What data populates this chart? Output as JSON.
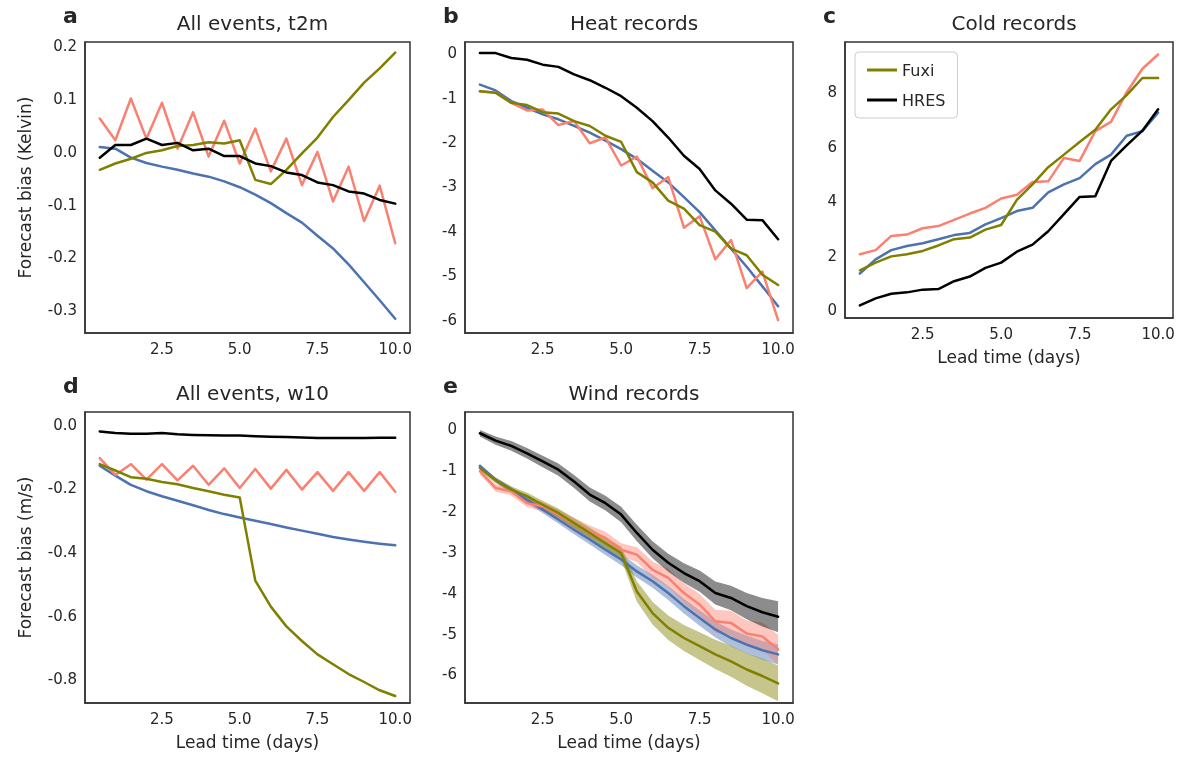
{
  "chart_data": [
    {
      "type": "line",
      "title": "All events, t2m",
      "annotations": [
        "a"
      ],
      "ylabel": "Forecast bias (Kelvin)",
      "x": [
        0.5,
        1,
        1.5,
        2,
        2.5,
        3,
        3.5,
        4,
        4.5,
        5,
        5.5,
        6,
        6.5,
        7,
        7.5,
        8,
        8.5,
        9,
        9.5,
        10
      ],
      "xlim": [
        0.025,
        10.475
      ],
      "xticks": [
        {
          "value": 2.5,
          "label": "2.5"
        },
        {
          "value": 5,
          "label": "5.0"
        },
        {
          "value": 7.5,
          "label": "7.5"
        },
        {
          "value": 10,
          "label": "10.0"
        }
      ],
      "ylim": [
        -0.343,
        0.208
      ],
      "yticks": [
        0.2,
        0.1,
        {
          "value": 0,
          "label": "0.0"
        },
        -0.1,
        -0.2,
        -0.3
      ],
      "series": [
        {
          "color": "#4c72b0",
          "values": [
            0.009,
            0.006,
            -0.011,
            -0.021,
            -0.028,
            -0.034,
            -0.041,
            -0.047,
            -0.056,
            -0.067,
            -0.081,
            -0.097,
            -0.116,
            -0.134,
            -0.159,
            -0.183,
            -0.213,
            -0.247,
            -0.281,
            -0.316
          ]
        },
        {
          "color": "#fa8072",
          "values": [
            0.063,
            0.022,
            0.101,
            0.025,
            0.093,
            0.006,
            0.075,
            -0.009,
            0.059,
            -0.022,
            0.044,
            -0.037,
            0.025,
            -0.063,
            0.0,
            -0.094,
            -0.028,
            -0.131,
            -0.064,
            -0.173
          ]
        },
        {
          "color": "#808000",
          "values": [
            -0.034,
            -0.022,
            -0.013,
            -0.002,
            0.003,
            0.011,
            0.013,
            0.018,
            0.016,
            0.022,
            -0.053,
            -0.061,
            -0.034,
            -0.003,
            0.027,
            0.066,
            0.098,
            0.131,
            0.158,
            0.188
          ]
        },
        {
          "color": "#000000",
          "values": [
            -0.011,
            0.013,
            0.013,
            0.025,
            0.013,
            0.017,
            0.003,
            0.006,
            -0.008,
            -0.008,
            -0.022,
            -0.027,
            -0.039,
            -0.044,
            -0.058,
            -0.063,
            -0.075,
            -0.079,
            -0.091,
            -0.098
          ]
        }
      ]
    },
    {
      "type": "line",
      "title": "Heat records",
      "annotations": [
        "b"
      ],
      "x": [
        0.5,
        1,
        1.5,
        2,
        2.5,
        3,
        3.5,
        4,
        4.5,
        5,
        5.5,
        6,
        6.5,
        7,
        7.5,
        8,
        8.5,
        9,
        9.5,
        10
      ],
      "xlim": [
        0.025,
        10.475
      ],
      "xticks": [
        {
          "value": 2.5,
          "label": "2.5"
        },
        {
          "value": 5,
          "label": "5.0"
        },
        {
          "value": 7.5,
          "label": "7.5"
        },
        {
          "value": 10,
          "label": "10.0"
        }
      ],
      "ylim": [
        -6.3,
        0.25
      ],
      "yticks": [
        0,
        -1,
        -2,
        -3,
        -4,
        -5,
        -6
      ],
      "series": [
        {
          "color": "#4c72b0",
          "values": [
            -0.71,
            -0.84,
            -1.08,
            -1.23,
            -1.38,
            -1.49,
            -1.64,
            -1.79,
            -1.97,
            -2.16,
            -2.38,
            -2.65,
            -2.91,
            -3.24,
            -3.58,
            -3.99,
            -4.4,
            -4.81,
            -5.25,
            -5.7
          ]
        },
        {
          "color": "#fa8072",
          "values": [
            -0.86,
            -0.89,
            -1.12,
            -1.29,
            -1.27,
            -1.62,
            -1.53,
            -2.03,
            -1.9,
            -2.53,
            -2.33,
            -3.04,
            -2.79,
            -3.93,
            -3.67,
            -4.64,
            -4.21,
            -5.29,
            -4.92,
            -6.01
          ]
        },
        {
          "color": "#808000",
          "values": [
            -0.86,
            -0.89,
            -1.12,
            -1.17,
            -1.33,
            -1.36,
            -1.53,
            -1.64,
            -1.86,
            -2.0,
            -2.68,
            -2.91,
            -3.32,
            -3.5,
            -3.87,
            -4.02,
            -4.4,
            -4.55,
            -4.99,
            -5.22
          ]
        },
        {
          "color": "#000000",
          "values": [
            0,
            0,
            -0.11,
            -0.15,
            -0.26,
            -0.31,
            -0.48,
            -0.61,
            -0.78,
            -0.97,
            -1.23,
            -1.53,
            -1.9,
            -2.31,
            -2.61,
            -3.09,
            -3.39,
            -3.75,
            -3.76,
            -4.19
          ]
        }
      ]
    },
    {
      "type": "line",
      "title": "Cold records",
      "annotations": [
        "c"
      ],
      "xlabel": "Lead time (days)",
      "legend": "top left",
      "x": [
        0.5,
        1,
        1.5,
        2,
        2.5,
        3,
        3.5,
        4,
        4.5,
        5,
        5.5,
        6,
        6.5,
        7,
        7.5,
        8,
        8.5,
        9,
        9.5,
        10
      ],
      "xlim": [
        0.025,
        10.475
      ],
      "xticks": [
        {
          "value": 2.5,
          "label": "2.5"
        },
        {
          "value": 5,
          "label": "5.0"
        },
        {
          "value": 7.5,
          "label": "7.5"
        },
        {
          "value": 10,
          "label": "10.0"
        }
      ],
      "ylim": [
        -0.28,
        9.84
      ],
      "yticks": [
        0,
        2,
        4,
        6,
        8
      ],
      "series": [
        {
          "color": "#4c72b0",
          "values": [
            1.35,
            1.87,
            2.21,
            2.36,
            2.46,
            2.61,
            2.76,
            2.84,
            3.15,
            3.38,
            3.64,
            3.76,
            4.33,
            4.62,
            4.85,
            5.36,
            5.71,
            6.4,
            6.57,
            7.25
          ]
        },
        {
          "color": "#fa8072",
          "values": [
            2.06,
            2.21,
            2.73,
            2.78,
            3.01,
            3.09,
            3.32,
            3.55,
            3.76,
            4.1,
            4.24,
            4.71,
            4.73,
            5.59,
            5.48,
            6.57,
            6.91,
            8.0,
            8.86,
            9.38
          ]
        },
        {
          "name": "Fuxi",
          "color": "#808000",
          "values": [
            1.47,
            1.75,
            1.98,
            2.06,
            2.18,
            2.38,
            2.61,
            2.67,
            2.96,
            3.13,
            4.05,
            4.62,
            5.25,
            5.71,
            6.17,
            6.62,
            7.37,
            7.89,
            8.52,
            8.52
          ]
        },
        {
          "name": "HRES",
          "color": "#000000",
          "values": [
            0.18,
            0.44,
            0.61,
            0.66,
            0.76,
            0.78,
            1.07,
            1.24,
            1.56,
            1.75,
            2.15,
            2.41,
            2.9,
            3.53,
            4.16,
            4.18,
            5.48,
            6.05,
            6.59,
            7.37
          ]
        }
      ]
    },
    {
      "type": "line",
      "title": "All events, w10",
      "annotations": [
        "d"
      ],
      "xlabel": "Lead time (days)",
      "ylabel": "Forecast bias (m/s)",
      "x": [
        0.5,
        1,
        1.5,
        2,
        2.5,
        3,
        3.5,
        4,
        4.5,
        5,
        5.5,
        6,
        6.5,
        7,
        7.5,
        8,
        8.5,
        9,
        9.5,
        10
      ],
      "xlim": [
        0.025,
        10.475
      ],
      "xticks": [
        {
          "value": 2.5,
          "label": "2.5"
        },
        {
          "value": 5,
          "label": "5.0"
        },
        {
          "value": 7.5,
          "label": "7.5"
        },
        {
          "value": 10,
          "label": "10.0"
        }
      ],
      "ylim": [
        -0.875,
        0.04
      ],
      "yticks": [
        {
          "value": 0,
          "label": "0.0"
        },
        -0.2,
        -0.4,
        -0.6,
        -0.8
      ],
      "series": [
        {
          "color": "#4c72b0",
          "values": [
            -0.129,
            -0.16,
            -0.189,
            -0.209,
            -0.225,
            -0.239,
            -0.253,
            -0.268,
            -0.281,
            -0.292,
            -0.302,
            -0.312,
            -0.323,
            -0.333,
            -0.343,
            -0.353,
            -0.361,
            -0.368,
            -0.374,
            -0.379
          ]
        },
        {
          "color": "#fa8072",
          "values": [
            -0.105,
            -0.158,
            -0.124,
            -0.173,
            -0.124,
            -0.175,
            -0.129,
            -0.189,
            -0.137,
            -0.199,
            -0.139,
            -0.201,
            -0.142,
            -0.204,
            -0.149,
            -0.208,
            -0.149,
            -0.208,
            -0.149,
            -0.211
          ]
        },
        {
          "color": "#808000",
          "values": [
            -0.124,
            -0.144,
            -0.165,
            -0.17,
            -0.18,
            -0.187,
            -0.199,
            -0.209,
            -0.22,
            -0.229,
            -0.49,
            -0.572,
            -0.634,
            -0.68,
            -0.722,
            -0.753,
            -0.784,
            -0.809,
            -0.835,
            -0.853
          ]
        },
        {
          "color": "#000000",
          "values": [
            -0.021,
            -0.026,
            -0.028,
            -0.028,
            -0.026,
            -0.03,
            -0.032,
            -0.033,
            -0.034,
            -0.034,
            -0.036,
            -0.038,
            -0.039,
            -0.04,
            -0.042,
            -0.042,
            -0.042,
            -0.042,
            -0.041,
            -0.041
          ]
        }
      ]
    },
    {
      "type": "line",
      "title": "Wind records",
      "annotations": [
        "e"
      ],
      "xlabel": "Lead time (days)",
      "x": [
        0.5,
        1,
        1.5,
        2,
        2.5,
        3,
        3.5,
        4,
        4.5,
        5,
        5.5,
        6,
        6.5,
        7,
        7.5,
        8,
        8.5,
        9,
        9.5,
        10
      ],
      "xlim": [
        0.025,
        10.475
      ],
      "xticks": [
        {
          "value": 2.5,
          "label": "2.5"
        },
        {
          "value": 5,
          "label": "5.0"
        },
        {
          "value": 7.5,
          "label": "7.5"
        },
        {
          "value": 10,
          "label": "10.0"
        }
      ],
      "ylim": [
        -6.7,
        0.42
      ],
      "yticks": [
        0,
        -1,
        -2,
        -3,
        -4,
        -5,
        -6
      ],
      "series": [
        {
          "color": "#4c72b0",
          "values": [
            -0.9,
            -1.24,
            -1.48,
            -1.73,
            -1.97,
            -2.21,
            -2.46,
            -2.7,
            -2.95,
            -3.19,
            -3.48,
            -3.72,
            -4.01,
            -4.33,
            -4.62,
            -4.9,
            -5.11,
            -5.27,
            -5.41,
            -5.51
          ],
          "lower": [
            -0.95,
            -1.3,
            -1.55,
            -1.81,
            -2.06,
            -2.31,
            -2.57,
            -2.82,
            -3.08,
            -3.33,
            -3.63,
            -3.88,
            -4.18,
            -4.51,
            -4.81,
            -5.1,
            -5.32,
            -5.49,
            -5.64,
            -5.76
          ],
          "upper": [
            -0.85,
            -1.18,
            -1.41,
            -1.65,
            -1.88,
            -2.11,
            -2.35,
            -2.58,
            -2.82,
            -3.05,
            -3.33,
            -3.56,
            -3.84,
            -4.15,
            -4.43,
            -4.7,
            -4.9,
            -5.05,
            -5.18,
            -5.26
          ]
        },
        {
          "color": "#fa8072",
          "values": [
            -1.03,
            -1.44,
            -1.52,
            -1.81,
            -1.89,
            -2.09,
            -2.3,
            -2.5,
            -2.66,
            -2.95,
            -3.07,
            -3.44,
            -3.64,
            -4.01,
            -4.29,
            -4.7,
            -4.74,
            -5.0,
            -5.07,
            -5.39
          ],
          "lower": [
            -1.11,
            -1.53,
            -1.62,
            -1.91,
            -2.0,
            -2.21,
            -2.43,
            -2.64,
            -2.81,
            -3.11,
            -3.25,
            -3.64,
            -3.86,
            -4.25,
            -4.55,
            -4.98,
            -5.04,
            -5.32,
            -5.41,
            -5.75
          ],
          "upper": [
            -0.95,
            -1.35,
            -1.42,
            -1.71,
            -1.78,
            -1.97,
            -2.17,
            -2.36,
            -2.51,
            -2.79,
            -2.89,
            -3.24,
            -3.42,
            -3.77,
            -4.03,
            -4.42,
            -4.44,
            -4.68,
            -4.73,
            -5.03
          ]
        },
        {
          "color": "#808000",
          "values": [
            -0.95,
            -1.25,
            -1.48,
            -1.64,
            -1.85,
            -2.05,
            -2.3,
            -2.54,
            -2.79,
            -3.03,
            -3.97,
            -4.5,
            -4.86,
            -5.11,
            -5.31,
            -5.51,
            -5.68,
            -5.88,
            -6.04,
            -6.22
          ],
          "lower": [
            -1.01,
            -1.32,
            -1.56,
            -1.73,
            -1.95,
            -2.16,
            -2.42,
            -2.67,
            -2.93,
            -3.18,
            -4.22,
            -4.78,
            -5.16,
            -5.43,
            -5.65,
            -5.87,
            -6.06,
            -6.28,
            -6.46,
            -6.66
          ],
          "upper": [
            -0.89,
            -1.18,
            -1.4,
            -1.55,
            -1.75,
            -1.94,
            -2.18,
            -2.41,
            -2.65,
            -2.88,
            -3.72,
            -4.22,
            -4.56,
            -4.79,
            -4.97,
            -5.15,
            -5.3,
            -5.48,
            -5.62,
            -5.78
          ]
        },
        {
          "color": "#000000",
          "values": [
            -0.1,
            -0.28,
            -0.41,
            -0.59,
            -0.79,
            -0.99,
            -1.28,
            -1.6,
            -1.81,
            -2.09,
            -2.54,
            -2.95,
            -3.27,
            -3.52,
            -3.72,
            -4.01,
            -4.13,
            -4.33,
            -4.48,
            -4.59
          ],
          "lower": [
            -0.18,
            -0.38,
            -0.53,
            -0.72,
            -0.93,
            -1.14,
            -1.44,
            -1.77,
            -1.99,
            -2.28,
            -2.74,
            -3.16,
            -3.49,
            -3.76,
            -3.98,
            -4.29,
            -4.43,
            -4.65,
            -4.83,
            -4.97
          ],
          "upper": [
            -0.02,
            -0.18,
            -0.29,
            -0.46,
            -0.65,
            -0.84,
            -1.12,
            -1.43,
            -1.63,
            -1.9,
            -2.34,
            -2.74,
            -3.05,
            -3.28,
            -3.46,
            -3.73,
            -3.83,
            -4.01,
            -4.13,
            -4.21
          ]
        }
      ]
    }
  ]
}
